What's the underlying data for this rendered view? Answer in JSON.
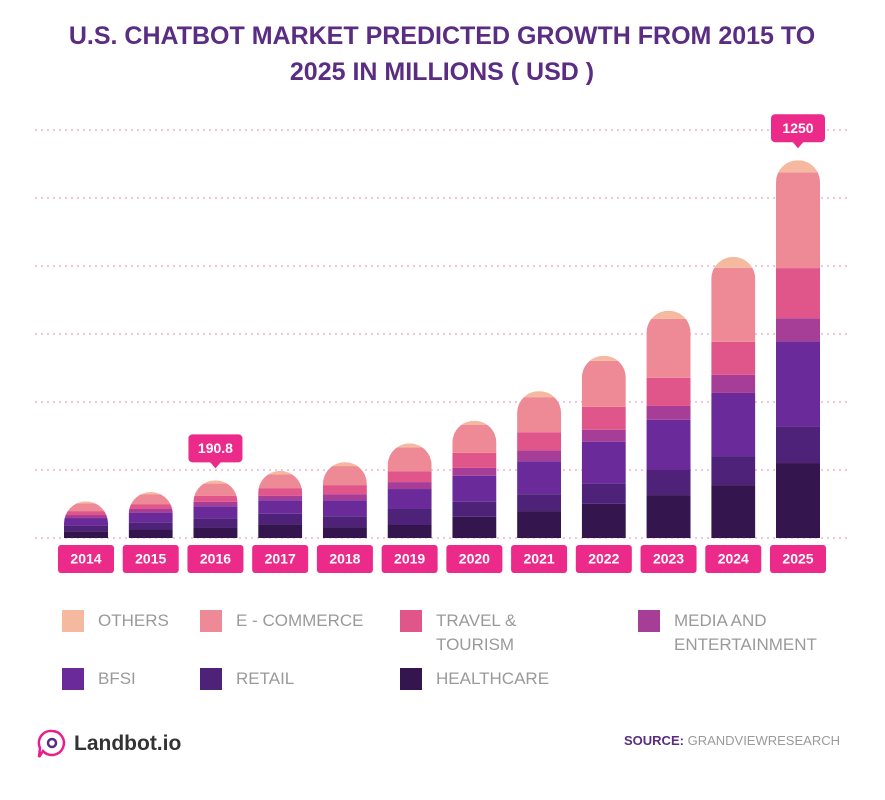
{
  "chart_data": {
    "type": "stacked_bar",
    "title": "U.S. CHATBOT MARKET PREDICTED GROWTH FROM 2015 TO 2025 IN MILLIONS ( USD )",
    "categories": [
      "2014",
      "2015",
      "2016",
      "2017",
      "2018",
      "2019",
      "2020",
      "2021",
      "2022",
      "2023",
      "2024",
      "2025"
    ],
    "series": [
      {
        "name": "HEALTHCARE",
        "color": "#34154e",
        "values": [
          22,
          28,
          35,
          45,
          36,
          43,
          70,
          89,
          113,
          142,
          175,
          248
        ]
      },
      {
        "name": "RETAIL",
        "color": "#4e2278",
        "values": [
          19,
          24,
          30,
          35,
          36,
          53,
          50,
          56,
          66,
          83,
          96,
          122
        ]
      },
      {
        "name": "BFSI",
        "color": "#6a2a9a",
        "values": [
          25,
          32,
          40,
          45,
          53,
          66,
          86,
          109,
          139,
          166,
          209,
          281
        ]
      },
      {
        "name": "MEDIA AND ENTERTAINMENT",
        "color": "#a63d96",
        "values": [
          10,
          12,
          15,
          15,
          20,
          23,
          26,
          36,
          40,
          46,
          60,
          76
        ]
      },
      {
        "name": "TRAVEL & TOURISM",
        "color": "#e0558a",
        "values": [
          13,
          16,
          20,
          25,
          30,
          36,
          50,
          60,
          76,
          93,
          109,
          166
        ]
      },
      {
        "name": "E - COMMERCE",
        "color": "#ee8a96",
        "values": [
          26,
          32,
          40,
          45,
          63,
          79,
          93,
          116,
          152,
          195,
          245,
          317
        ]
      },
      {
        "name": "OTHERS",
        "color": "#f5b9a0",
        "values": [
          6,
          8,
          10.8,
          12,
          13,
          13,
          13,
          20,
          17,
          27,
          36,
          40
        ]
      }
    ],
    "totals": [
      null,
      null,
      190.8,
      null,
      null,
      null,
      null,
      null,
      null,
      null,
      null,
      1250
    ],
    "ylim": [
      0,
      1350
    ],
    "yticks": [
      0,
      225,
      450,
      675,
      900,
      1125,
      1350
    ],
    "grid": true,
    "legend_order": [
      6,
      5,
      4,
      3,
      2,
      1,
      0
    ],
    "source_label": "SOURCE:",
    "source": "GRANDVIEWRESEARCH",
    "brand": "Landbot.io"
  }
}
